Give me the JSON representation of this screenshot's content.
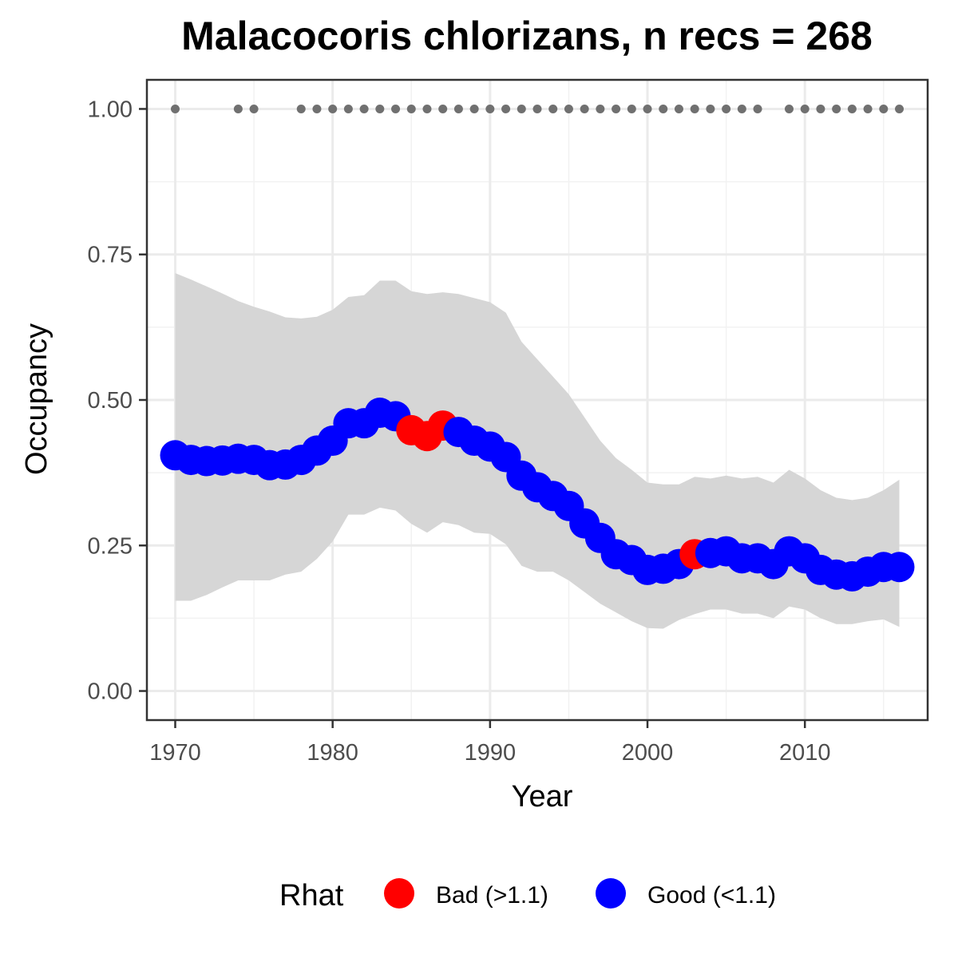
{
  "chart_data": {
    "type": "line",
    "title": "Malacocoris chlorizans, n recs = 268",
    "xlabel": "Year",
    "ylabel": "Occupancy",
    "xlim": [
      1968.2,
      2017.8
    ],
    "ylim": [
      -0.05,
      1.05
    ],
    "x_ticks": [
      1970,
      1980,
      1990,
      2000,
      2010
    ],
    "x_tick_labels": [
      "1970",
      "1980",
      "1990",
      "2000",
      "2010"
    ],
    "y_ticks": [
      0,
      0.25,
      0.5,
      0.75,
      1.0
    ],
    "y_tick_labels": [
      "0.00",
      "0.25",
      "0.50",
      "0.75",
      "1.00"
    ],
    "grid": true,
    "legend": {
      "position": "bottom",
      "title": "Rhat",
      "items": [
        {
          "label": "Bad (>1.1)",
          "color": "#ff0000"
        },
        {
          "label": "Good (<1.1)",
          "color": "#0000ff"
        }
      ]
    },
    "colors": {
      "bad": "#ff0000",
      "good": "#0000ff",
      "ribbon": "#d6d6d6",
      "record_dots": "#707070"
    },
    "series": [
      {
        "x": [
          1970,
          1971,
          1972,
          1973,
          1974,
          1975,
          1976,
          1977,
          1978,
          1979,
          1980,
          1981,
          1982,
          1983,
          1984,
          1985,
          1986,
          1987,
          1988,
          1989,
          1990,
          1991,
          1992,
          1993,
          1994,
          1995,
          1996,
          1997,
          1998,
          1999,
          2000,
          2001,
          2002,
          2003,
          2004,
          2005,
          2006,
          2007,
          2008,
          2009,
          2010,
          2011,
          2012,
          2013,
          2014,
          2015,
          2016
        ],
        "y": [
          0.405,
          0.397,
          0.395,
          0.396,
          0.399,
          0.397,
          0.388,
          0.389,
          0.397,
          0.413,
          0.43,
          0.46,
          0.46,
          0.478,
          0.472,
          0.448,
          0.438,
          0.456,
          0.445,
          0.43,
          0.42,
          0.402,
          0.37,
          0.35,
          0.335,
          0.318,
          0.288,
          0.263,
          0.235,
          0.225,
          0.208,
          0.21,
          0.218,
          0.235,
          0.237,
          0.24,
          0.228,
          0.228,
          0.218,
          0.24,
          0.228,
          0.208,
          0.2,
          0.197,
          0.205,
          0.213,
          0.213
        ],
        "rhat": [
          "Good",
          "Good",
          "Good",
          "Good",
          "Good",
          "Good",
          "Good",
          "Good",
          "Good",
          "Good",
          "Good",
          "Good",
          "Good",
          "Good",
          "Good",
          "Bad",
          "Bad",
          "Bad",
          "Good",
          "Good",
          "Good",
          "Good",
          "Good",
          "Good",
          "Good",
          "Good",
          "Good",
          "Good",
          "Good",
          "Good",
          "Good",
          "Good",
          "Good",
          "Bad",
          "Good",
          "Good",
          "Good",
          "Good",
          "Good",
          "Good",
          "Good",
          "Good",
          "Good",
          "Good",
          "Good",
          "Good",
          "Good"
        ],
        "lower": [
          0.155,
          0.155,
          0.165,
          0.178,
          0.19,
          0.19,
          0.19,
          0.2,
          0.205,
          0.227,
          0.257,
          0.303,
          0.303,
          0.315,
          0.31,
          0.287,
          0.272,
          0.29,
          0.285,
          0.272,
          0.27,
          0.252,
          0.215,
          0.205,
          0.205,
          0.19,
          0.17,
          0.15,
          0.135,
          0.12,
          0.108,
          0.107,
          0.122,
          0.132,
          0.14,
          0.14,
          0.133,
          0.133,
          0.125,
          0.145,
          0.14,
          0.125,
          0.115,
          0.115,
          0.12,
          0.123,
          0.11
        ],
        "upper": [
          0.718,
          0.707,
          0.695,
          0.683,
          0.67,
          0.66,
          0.652,
          0.642,
          0.64,
          0.643,
          0.655,
          0.677,
          0.68,
          0.705,
          0.705,
          0.687,
          0.682,
          0.685,
          0.682,
          0.675,
          0.668,
          0.65,
          0.6,
          0.57,
          0.54,
          0.51,
          0.47,
          0.43,
          0.4,
          0.38,
          0.358,
          0.355,
          0.355,
          0.368,
          0.365,
          0.37,
          0.365,
          0.368,
          0.358,
          0.38,
          0.365,
          0.345,
          0.332,
          0.328,
          0.332,
          0.345,
          0.363
        ]
      }
    ],
    "records_y": 1.0,
    "record_years": [
      1970,
      1974,
      1975,
      1978,
      1979,
      1980,
      1981,
      1982,
      1983,
      1984,
      1985,
      1986,
      1987,
      1988,
      1989,
      1990,
      1991,
      1992,
      1993,
      1994,
      1995,
      1996,
      1997,
      1998,
      1999,
      2000,
      2001,
      2002,
      2003,
      2004,
      2005,
      2006,
      2007,
      2009,
      2010,
      2011,
      2012,
      2013,
      2014,
      2015,
      2016
    ]
  }
}
